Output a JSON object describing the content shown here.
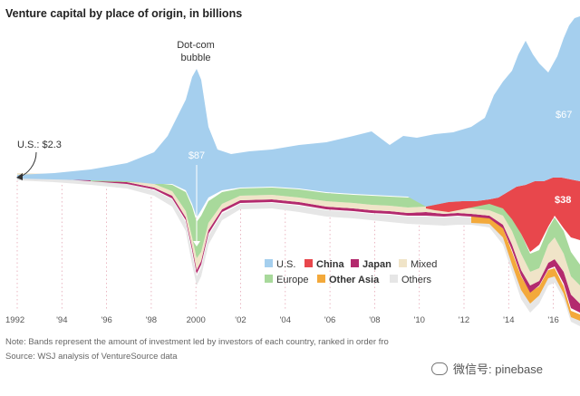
{
  "title": "Venture capital by place of origin, in billions",
  "note": "Note: Bands represent the amount of investment led by investors of each country, ranked in order fro",
  "source": "Source: WSJ analysis of VentureSource data",
  "watermark": "微信号: pinebase",
  "chart_data": {
    "type": "area",
    "subtype": "streamgraph",
    "title": "Venture capital by place of origin, in billions",
    "x_ticks": [
      "1992",
      "'94",
      "'96",
      "'98",
      "2000",
      "'02",
      "'04",
      "'06",
      "'08",
      "'10",
      "'12",
      "'14",
      "'16"
    ],
    "x_range": [
      1992,
      2017
    ],
    "grid": "dotted vertical lines at ticks",
    "legend_position": "center-right",
    "legend": [
      {
        "name": "U.S.",
        "color": "#a5cfee",
        "bold": false
      },
      {
        "name": "China",
        "color": "#e8474c",
        "bold": true
      },
      {
        "name": "Japan",
        "color": "#b32a6e",
        "bold": true
      },
      {
        "name": "Mixed",
        "color": "#f0e4c8",
        "bold": false
      },
      {
        "name": "Europe",
        "color": "#a8d99b",
        "bold": false
      },
      {
        "name": "Other Asia",
        "color": "#f3a93b",
        "bold": true
      },
      {
        "name": "Others",
        "color": "#e6e6e6",
        "bold": false
      }
    ],
    "annotations": {
      "us_start": "U.S.: $2.3",
      "dotcom_line1": "Dot-com",
      "dotcom_line2": "bubble",
      "peak_us_2000": "$87",
      "us_2016": "$67",
      "china_2016": "$38"
    },
    "series_approx": {
      "x": [
        1992,
        1993,
        1994,
        1995,
        1996,
        1997,
        1998,
        1999,
        2000,
        2001,
        2002,
        2003,
        2004,
        2005,
        2006,
        2007,
        2008,
        2009,
        2010,
        2011,
        2012,
        2013,
        2014,
        2015,
        2016
      ],
      "U.S.": [
        2.3,
        3,
        4,
        6,
        10,
        14,
        20,
        55,
        87,
        36,
        22,
        20,
        23,
        25,
        28,
        31,
        31,
        22,
        26,
        32,
        30,
        36,
        55,
        70,
        67
      ],
      "China": [
        0,
        0,
        0,
        0,
        0,
        0,
        0,
        0,
        0,
        0,
        0,
        0,
        0,
        0.3,
        0.8,
        1.5,
        2,
        2,
        3,
        5,
        4,
        6,
        20,
        35,
        38
      ]
    }
  }
}
